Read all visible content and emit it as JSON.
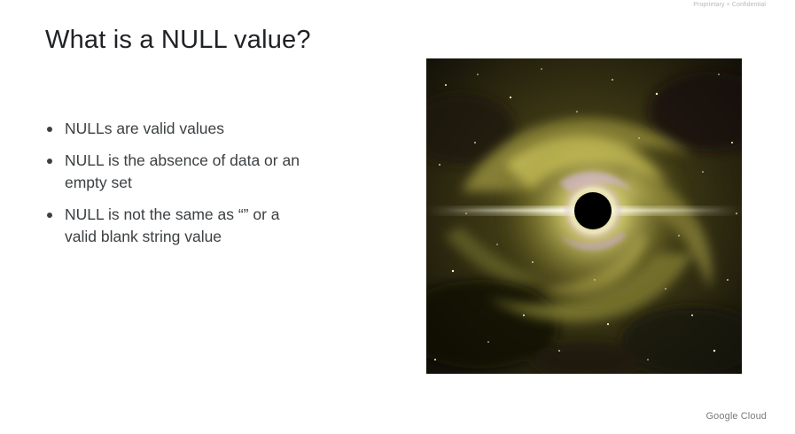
{
  "header": {
    "confidential_label": "Proprietary + Confidential"
  },
  "slide": {
    "title": "What is a NULL value?",
    "bullets": [
      "NULLs are valid values",
      "NULL is the absence of data or an empty set",
      "NULL is not the same as “” or a valid blank string value"
    ]
  },
  "image": {
    "subject": "black-hole-illustration",
    "colors": {
      "space": "#16130a",
      "glow": "#e8e07a",
      "dust": "#6b6a2a",
      "core": "#000000"
    }
  },
  "footer": {
    "logo_text": "Google Cloud"
  },
  "theme": {
    "title_color": "#202124",
    "text_color": "#3c4043",
    "muted_color": "#7a7a7a"
  }
}
